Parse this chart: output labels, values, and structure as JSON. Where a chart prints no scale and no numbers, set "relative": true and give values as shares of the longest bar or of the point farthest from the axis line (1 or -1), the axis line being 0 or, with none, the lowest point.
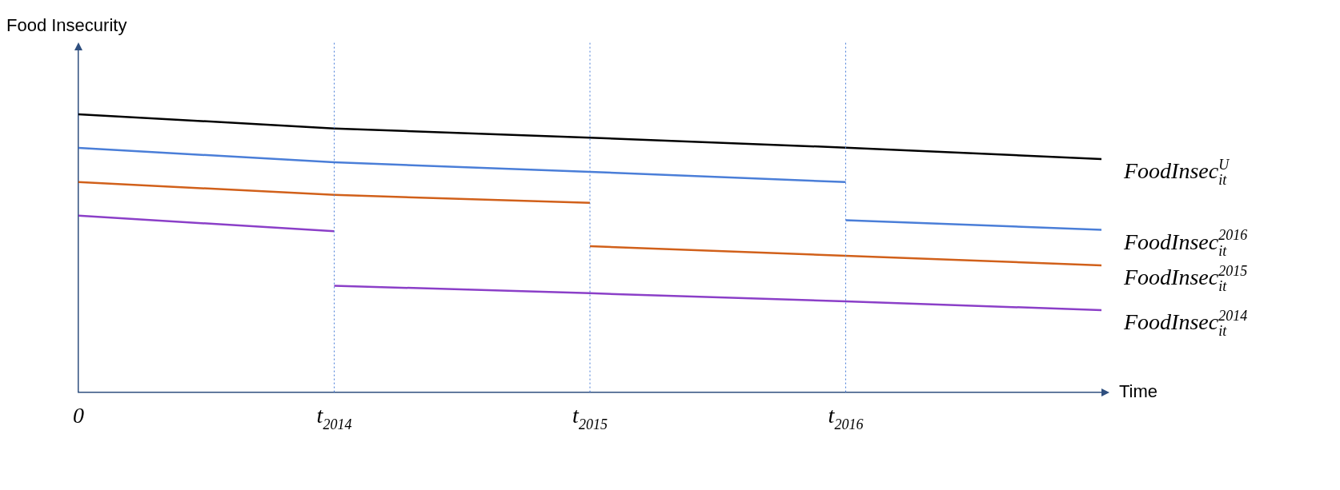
{
  "chart_data": {
    "type": "line",
    "relative": true,
    "xlabel": "Time",
    "ylabel": "Food Insecurity",
    "categories": [
      "0",
      "t$_{2014}$",
      "t$_{2015}$",
      "t$_{2016}$",
      null
    ],
    "grid": false,
    "legend": false,
    "marker": "none",
    "ref_lines": [
      {
        "axis": "x",
        "value": "t$_{2014}$",
        "color": "#4a7ed8",
        "line_style": "dotted"
      },
      {
        "axis": "x",
        "value": "t$_{2015}$",
        "color": "#4a7ed8",
        "line_style": "dotted"
      },
      {
        "axis": "x",
        "value": "t$_{2016}$",
        "color": "#4a7ed8",
        "line_style": "dotted"
      }
    ],
    "series": [
      {
        "name": "FoodInsec$_{it}$$^{U}$",
        "color": "#000000",
        "values": [
          1,
          0.949,
          0.916,
          0.88,
          0.839
        ]
      },
      {
        "color": "#4a7ed8",
        "values": [
          0.879,
          0.827,
          0.793,
          0.756,
          null
        ]
      },
      {
        "name": "FoodInsec$_{it}$$^{2016}$",
        "color": "#4a7ed8",
        "values": [
          null,
          null,
          null,
          0.619,
          0.584
        ]
      },
      {
        "color": "#d1601a",
        "values": [
          0.756,
          0.71,
          0.681,
          null,
          null
        ]
      },
      {
        "name": "FoodInsec$_{it}$$^{2015}$",
        "color": "#d1601a",
        "values": [
          null,
          null,
          0.525,
          0.491,
          0.456
        ]
      },
      {
        "color": "#8b3fc8",
        "values": [
          0.635,
          0.579,
          null,
          null,
          null
        ]
      },
      {
        "name": "FoodInsec$_{it}$$^{2014}$",
        "color": "#8b3fc8",
        "values": [
          null,
          0.383,
          0.356,
          0.327,
          0.295
        ]
      }
    ]
  }
}
